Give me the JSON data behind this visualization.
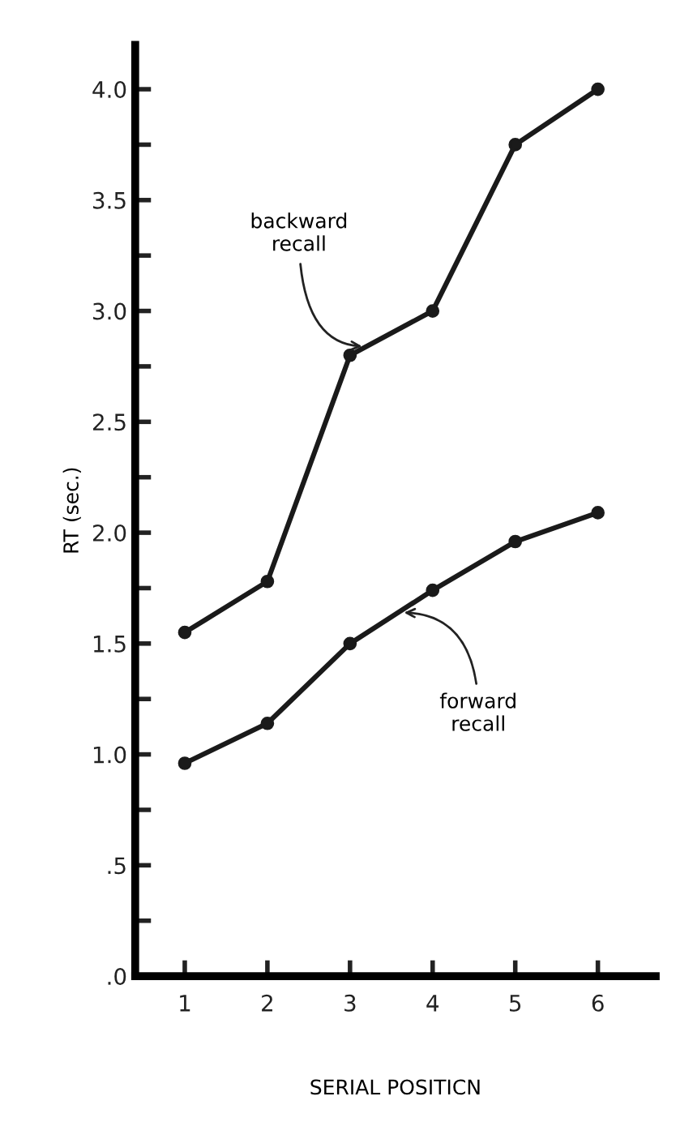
{
  "chart_data": {
    "type": "line",
    "xlabel": "SERIAL POSITICN",
    "ylabel": "RT (sec.)",
    "x": [
      1,
      2,
      3,
      4,
      5,
      6
    ],
    "series": [
      {
        "color": "#1a1a1a",
        "values": [
          1.55,
          1.78,
          2.8,
          3.0,
          3.75,
          4.0
        ]
      },
      {
        "color": "#1a1a1a",
        "values": [
          0.96,
          1.14,
          1.5,
          1.74,
          1.96,
          2.09
        ]
      }
    ],
    "xlim": [
      0.4,
      6.7
    ],
    "xticks": [
      1,
      2,
      3,
      4,
      5,
      6
    ],
    "ylim": [
      0,
      4.2
    ],
    "yticks": [
      {
        "value": 0,
        "label": ".0"
      },
      {
        "value": 0.25,
        "label": null
      },
      {
        "value": 0.5,
        "label": ".5"
      },
      {
        "value": 0.75,
        "label": null
      },
      {
        "value": 1.0,
        "label": "1.0"
      },
      {
        "value": 1.25,
        "label": null
      },
      {
        "value": 1.5,
        "label": "1.5"
      },
      {
        "value": 1.75,
        "label": null
      },
      {
        "value": 2.0,
        "label": "2.0"
      },
      {
        "value": 2.25,
        "label": null
      },
      {
        "value": 2.5,
        "label": "2.5"
      },
      {
        "value": 2.75,
        "label": null
      },
      {
        "value": 3.0,
        "label": "3.0"
      },
      {
        "value": 3.25,
        "label": null
      },
      {
        "value": 3.5,
        "label": "3.5"
      },
      {
        "value": 3.75,
        "label": null
      },
      {
        "value": 4.0,
        "label": "4.0"
      }
    ],
    "annotations": [
      {
        "text": "backward\nrecall",
        "x": 3.2,
        "y": 2.84
      },
      {
        "text": "forward\nrecall",
        "x": 3.6,
        "y": 1.64
      }
    ],
    "marker": "circle",
    "line_style": "solid",
    "grid": false
  }
}
